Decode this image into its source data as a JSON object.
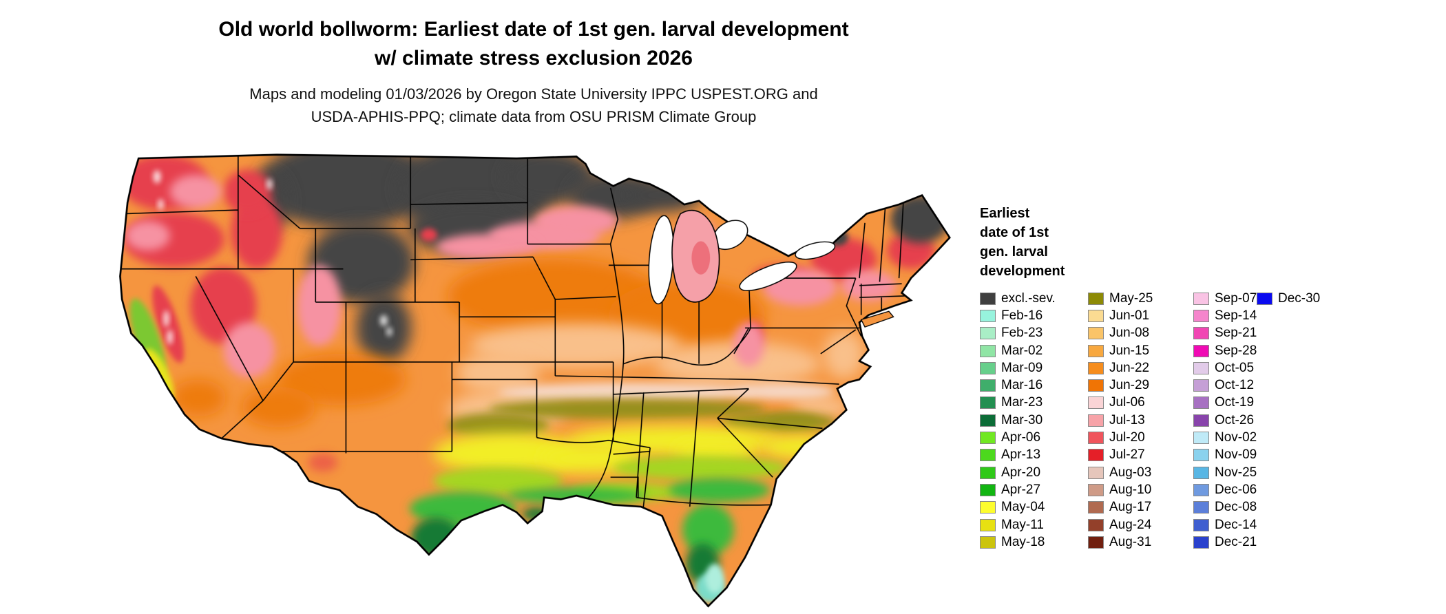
{
  "header": {
    "title_line1": "Old world bollworm: Earliest date of 1st gen. larval development",
    "title_line2": "w/ climate stress exclusion 2026",
    "subtitle_line1": "Maps and modeling 01/03/2026 by Oregon State University IPPC USPEST.ORG and",
    "subtitle_line2": "USDA-APHIS-PPQ; climate data from OSU PRISM Climate Group"
  },
  "legend": {
    "title_lines": [
      "Earliest",
      "date of 1st",
      "gen. larval",
      "development"
    ],
    "columns": [
      {
        "items": [
          {
            "label": "excl.-sev.",
            "color": "#3f3f3f"
          },
          {
            "label": "Feb-16",
            "color": "#97f3dd"
          },
          {
            "label": "Feb-23",
            "color": "#a9eec6"
          },
          {
            "label": "Mar-02",
            "color": "#90e5a5"
          },
          {
            "label": "Mar-09",
            "color": "#67cf8b"
          },
          {
            "label": "Mar-16",
            "color": "#3fae6b"
          },
          {
            "label": "Mar-23",
            "color": "#238f51"
          },
          {
            "label": "Mar-30",
            "color": "#0c6c37"
          },
          {
            "label": "Apr-06",
            "color": "#70e822"
          },
          {
            "label": "Apr-13",
            "color": "#4cd91d"
          },
          {
            "label": "Apr-20",
            "color": "#2fc918"
          },
          {
            "label": "Apr-27",
            "color": "#12b512"
          },
          {
            "label": "May-04",
            "color": "#fdfd2e"
          },
          {
            "label": "May-11",
            "color": "#e7e112"
          },
          {
            "label": "May-18",
            "color": "#cbc40c"
          }
        ]
      },
      {
        "items": [
          {
            "label": "May-25",
            "color": "#8d8a05"
          },
          {
            "label": "Jun-01",
            "color": "#fbdb92"
          },
          {
            "label": "Jun-08",
            "color": "#fac468"
          },
          {
            "label": "Jun-15",
            "color": "#f8a83f"
          },
          {
            "label": "Jun-22",
            "color": "#f68d1d"
          },
          {
            "label": "Jun-29",
            "color": "#f07405"
          },
          {
            "label": "Jul-06",
            "color": "#fad4d6"
          },
          {
            "label": "Jul-13",
            "color": "#f7a3a8"
          },
          {
            "label": "Jul-20",
            "color": "#f0545c"
          },
          {
            "label": "Jul-27",
            "color": "#e51f28"
          },
          {
            "label": "Aug-03",
            "color": "#e6c6bb"
          },
          {
            "label": "Aug-10",
            "color": "#cf9b87"
          },
          {
            "label": "Aug-17",
            "color": "#b06a50"
          },
          {
            "label": "Aug-24",
            "color": "#93402a"
          },
          {
            "label": "Aug-31",
            "color": "#701f0f"
          }
        ]
      },
      {
        "items": [
          {
            "label": "Sep-07",
            "color": "#f9c3e4"
          },
          {
            "label": "Sep-14",
            "color": "#f585cc"
          },
          {
            "label": "Sep-21",
            "color": "#f146b3"
          },
          {
            "label": "Sep-28",
            "color": "#f00ab4"
          },
          {
            "label": "Oct-05",
            "color": "#e2cbe9"
          },
          {
            "label": "Oct-12",
            "color": "#c59fd6"
          },
          {
            "label": "Oct-19",
            "color": "#a771c2"
          },
          {
            "label": "Oct-26",
            "color": "#8844ab"
          },
          {
            "label": "Nov-02",
            "color": "#bfeaf7"
          },
          {
            "label": "Nov-09",
            "color": "#8ad2ee"
          },
          {
            "label": "Nov-25",
            "color": "#58b6e4"
          },
          {
            "label": "Dec-06",
            "color": "#6f9ae0"
          },
          {
            "label": "Dec-08",
            "color": "#5c7fd9"
          },
          {
            "label": "Dec-14",
            "color": "#3f5ed0"
          },
          {
            "label": "Dec-21",
            "color": "#2a41cd"
          }
        ]
      },
      {
        "items": [
          {
            "label": "Dec-30",
            "color": "#0a0af0"
          }
        ]
      }
    ]
  },
  "map": {
    "region": "Contiguous United States",
    "type": "raster model map with state boundaries",
    "notable_regions": [
      {
        "area": "Northern Rockies, northern plains, upper Midwest, northern Maine",
        "category": "excl.-sev. (dark gray)"
      },
      {
        "area": "Pacific Northwest, Great Basin, interior mountains, Northeast",
        "category": "Jul–Aug dates (reds and pinks)"
      },
      {
        "area": "Central plains, Midwest, mid-Atlantic",
        "category": "Jun dates (oranges)"
      },
      {
        "area": "Southern plains, Tennessee valley, Carolinas",
        "category": "May dates (yellows and olive)"
      },
      {
        "area": "Gulf Coast, south Texas, Florida peninsula",
        "category": "Feb–Apr dates (greens and aqua)"
      }
    ]
  }
}
